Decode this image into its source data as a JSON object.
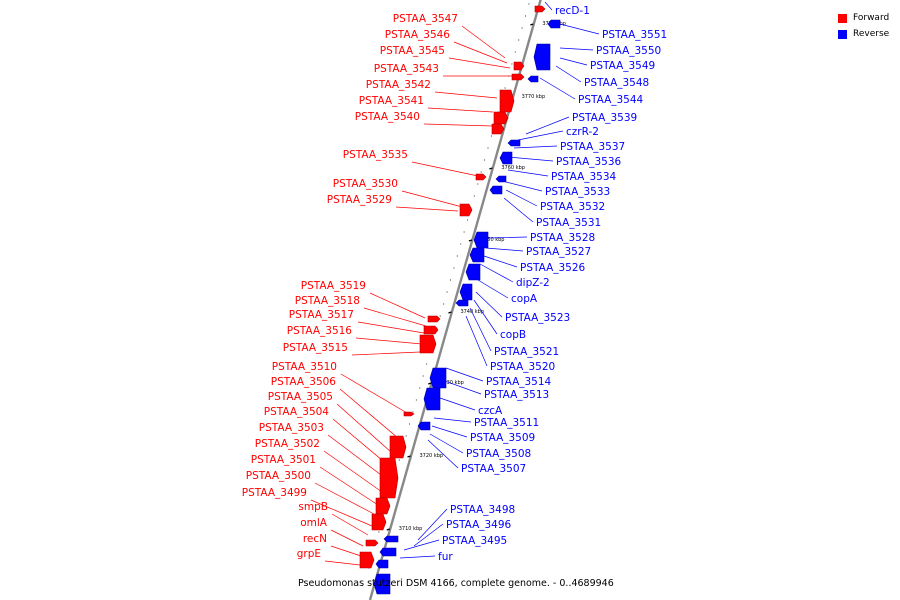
{
  "legend": {
    "forward": {
      "label": "Forward",
      "color": "#ff0000"
    },
    "reverse": {
      "label": "Reverse",
      "color": "#0000ff"
    }
  },
  "caption": "Pseudomonas stutzeri DSM 4166, complete genome. - 0..4689946",
  "colors": {
    "forward": "#ff0000",
    "reverse": "#0000ff",
    "axis": "#888888"
  },
  "ticks": [
    "3780 kbp",
    "3770 kbp",
    "3760 kbp",
    "3750 kbp",
    "3740 kbp",
    "3730 kbp",
    "3720 kbp",
    "3710 kbp"
  ],
  "forward_genes": [
    "PSTAA_3547",
    "PSTAA_3546",
    "PSTAA_3545",
    "PSTAA_3543",
    "PSTAA_3542",
    "PSTAA_3541",
    "PSTAA_3540",
    "PSTAA_3535",
    "PSTAA_3530",
    "PSTAA_3529",
    "PSTAA_3519",
    "PSTAA_3518",
    "PSTAA_3517",
    "PSTAA_3516",
    "PSTAA_3515",
    "PSTAA_3510",
    "PSTAA_3506",
    "PSTAA_3505",
    "PSTAA_3504",
    "PSTAA_3503",
    "PSTAA_3502",
    "PSTAA_3501",
    "PSTAA_3500",
    "PSTAA_3499",
    "smpB",
    "omlA",
    "recN",
    "grpE"
  ],
  "reverse_genes": [
    "recD-1",
    "PSTAA_3551",
    "PSTAA_3550",
    "PSTAA_3549",
    "PSTAA_3548",
    "PSTAA_3544",
    "PSTAA_3539",
    "czrR-2",
    "PSTAA_3537",
    "PSTAA_3536",
    "PSTAA_3534",
    "PSTAA_3533",
    "PSTAA_3532",
    "PSTAA_3531",
    "PSTAA_3528",
    "PSTAA_3527",
    "PSTAA_3526",
    "dipZ-2",
    "copA",
    "PSTAA_3523",
    "copB",
    "PSTAA_3521",
    "PSTAA_3520",
    "PSTAA_3514",
    "PSTAA_3513",
    "czcA",
    "PSTAA_3511",
    "PSTAA_3509",
    "PSTAA_3508",
    "PSTAA_3507",
    "PSTAA_3498",
    "PSTAA_3496",
    "PSTAA_3495",
    "fur"
  ]
}
